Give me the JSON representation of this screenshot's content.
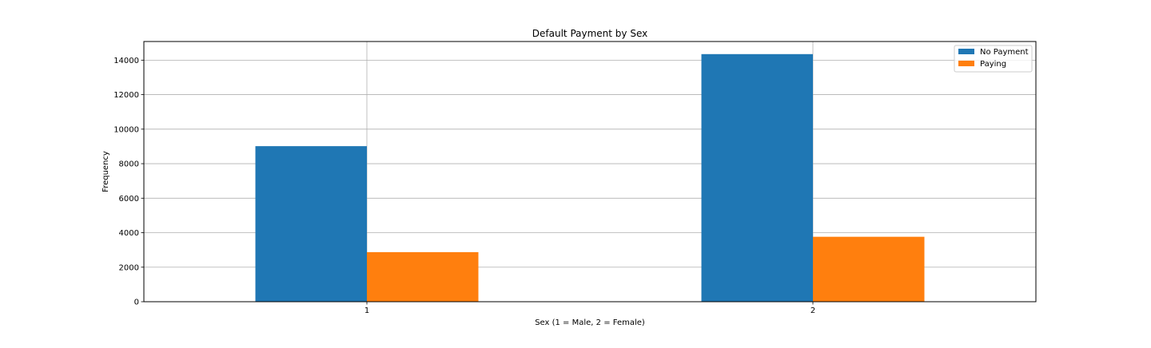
{
  "chart_data": {
    "type": "bar",
    "title": "Default Payment by Sex",
    "xlabel": "Sex (1 = Male, 2 = Female)",
    "ylabel": "Frequency",
    "categories": [
      "1",
      "2"
    ],
    "series": [
      {
        "name": "No Payment",
        "color": "#1f77b4",
        "values": [
          9015,
          14349
        ]
      },
      {
        "name": "Paying",
        "color": "#ff7f0e",
        "values": [
          2873,
          3763
        ]
      }
    ],
    "ylim": [
      0,
      15080
    ],
    "yticks": [
      0,
      2000,
      4000,
      6000,
      8000,
      10000,
      12000,
      14000
    ],
    "grid": true,
    "legend_position": "top-right"
  }
}
